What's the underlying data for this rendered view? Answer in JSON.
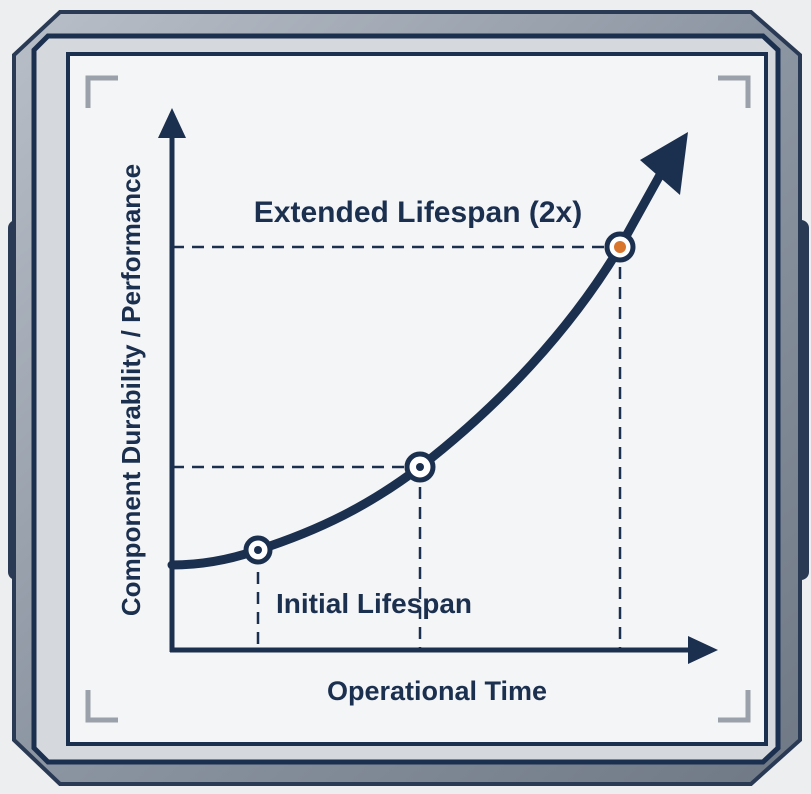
{
  "diagram": {
    "curve_labels": {
      "extended": "Extended Lifespan (2x)",
      "initial": "Initial Lifespan"
    },
    "axes": {
      "x_label": "Operational Time",
      "y_label": "Component Durability / Performance"
    }
  }
}
